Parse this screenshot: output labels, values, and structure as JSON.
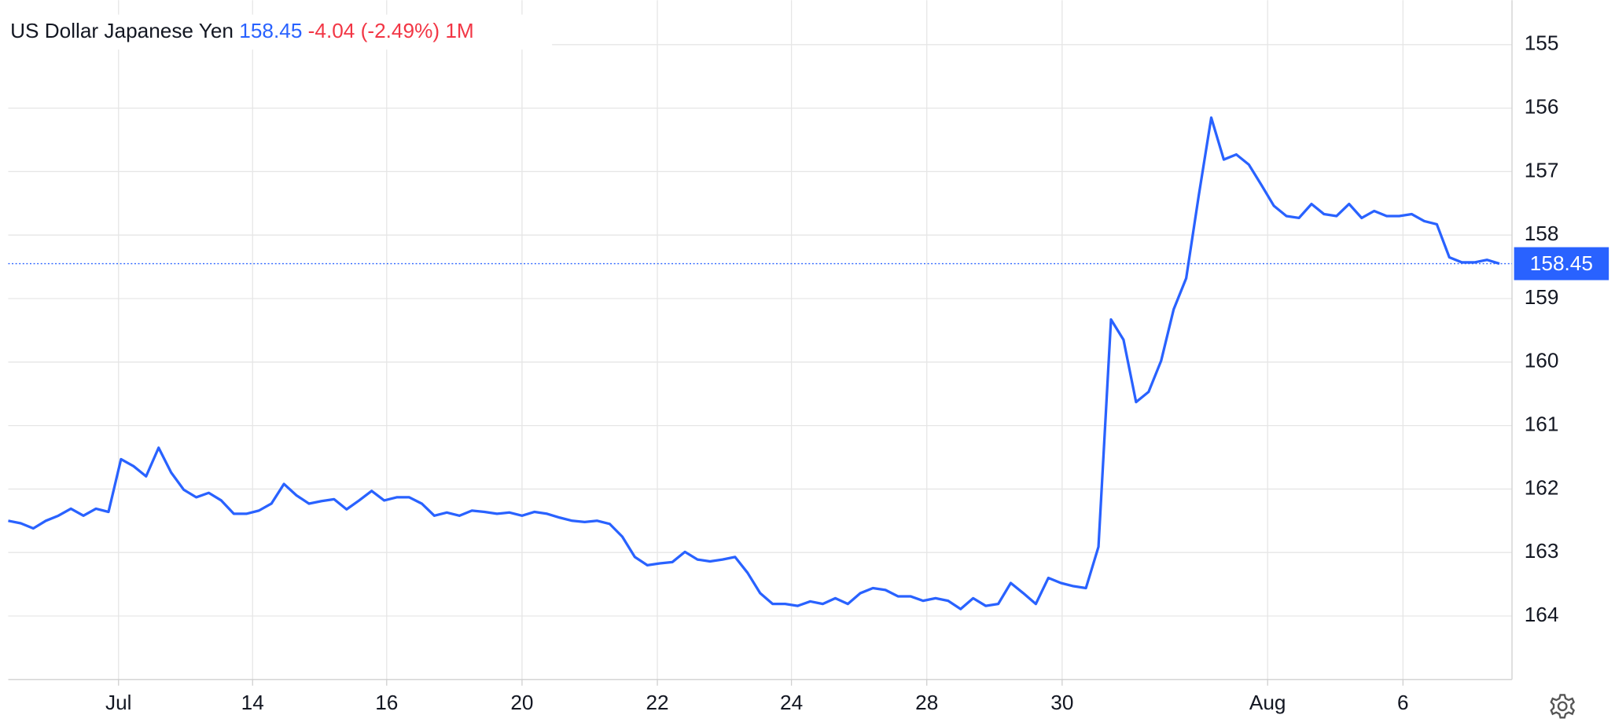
{
  "chart_data": {
    "type": "line",
    "title": "US Dollar Japanese Yen",
    "last_value": 158.45,
    "change": -4.04,
    "change_pct": {
      "value": -2.49,
      "label": "(-2.49%)"
    },
    "period": "1M",
    "color": "#2962ff",
    "x": [
      0,
      1,
      2,
      3,
      4,
      5,
      6,
      7,
      8,
      9,
      10,
      11,
      12,
      13,
      14,
      15,
      16,
      17,
      18,
      19,
      20,
      21,
      22,
      23,
      24,
      25,
      26,
      27,
      28,
      29,
      30,
      31,
      32,
      33,
      34,
      35,
      36,
      37,
      38,
      39,
      40,
      41,
      42,
      43,
      44,
      45,
      46,
      47,
      48,
      49,
      50,
      51,
      52,
      53,
      54,
      55,
      56,
      57,
      58,
      59,
      60,
      61,
      62,
      63,
      64,
      65,
      66,
      67,
      68,
      69,
      70,
      71,
      72,
      73,
      74,
      75,
      76,
      77,
      78,
      79,
      80,
      81,
      82,
      83,
      84,
      85,
      86,
      87,
      88,
      89,
      90,
      91,
      92,
      93,
      94,
      95,
      96,
      97,
      98,
      99,
      100,
      101,
      102,
      103,
      104,
      105,
      106,
      107,
      108,
      109,
      110,
      111,
      112,
      113,
      114,
      115,
      116,
      117,
      118,
      119
    ],
    "values": [
      162.5,
      162.54,
      162.62,
      162.5,
      162.42,
      162.31,
      162.42,
      162.31,
      162.36,
      161.53,
      161.64,
      161.8,
      161.35,
      161.74,
      162.01,
      162.13,
      162.06,
      162.18,
      162.39,
      162.39,
      162.34,
      162.23,
      161.92,
      162.1,
      162.23,
      162.19,
      162.16,
      162.32,
      162.18,
      162.03,
      162.18,
      162.13,
      162.13,
      162.23,
      162.42,
      162.37,
      162.42,
      162.34,
      162.36,
      162.39,
      162.37,
      162.42,
      162.36,
      162.39,
      162.45,
      162.5,
      162.52,
      162.5,
      162.55,
      162.75,
      163.07,
      163.2,
      163.17,
      163.15,
      162.99,
      163.11,
      163.14,
      163.11,
      163.07,
      163.32,
      163.64,
      163.81,
      163.81,
      163.84,
      163.77,
      163.81,
      163.72,
      163.81,
      163.64,
      163.56,
      163.59,
      163.69,
      163.69,
      163.76,
      163.72,
      163.76,
      163.89,
      163.72,
      163.84,
      163.81,
      163.48,
      163.64,
      163.81,
      163.4,
      163.48,
      163.53,
      163.56,
      162.91,
      159.33,
      159.65,
      160.63,
      160.47,
      159.98,
      159.17,
      158.68,
      157.38,
      156.15,
      156.81,
      156.73,
      156.89,
      157.21,
      157.54,
      157.7,
      157.73,
      157.51,
      157.67,
      157.7,
      157.51,
      157.73,
      157.62,
      157.7,
      157.7,
      157.67,
      157.78,
      157.83,
      158.35,
      158.43,
      158.43,
      158.39,
      158.45
    ],
    "xlim": [
      0,
      120
    ],
    "xticks": [
      {
        "value": 8.8,
        "label": "Jul"
      },
      {
        "value": 19.5,
        "label": "14"
      },
      {
        "value": 30.2,
        "label": "16"
      },
      {
        "value": 41.0,
        "label": "20"
      },
      {
        "value": 51.8,
        "label": "22"
      },
      {
        "value": 62.5,
        "label": "24"
      },
      {
        "value": 73.3,
        "label": "28"
      },
      {
        "value": 84.1,
        "label": "30"
      },
      {
        "value": 100.5,
        "label": "Aug"
      },
      {
        "value": 111.3,
        "label": "6"
      }
    ],
    "ylim": [
      165,
      154.3
    ],
    "yticks": [
      155,
      156,
      157,
      158,
      159,
      160,
      161,
      162,
      163,
      164
    ],
    "grid": true
  }
}
